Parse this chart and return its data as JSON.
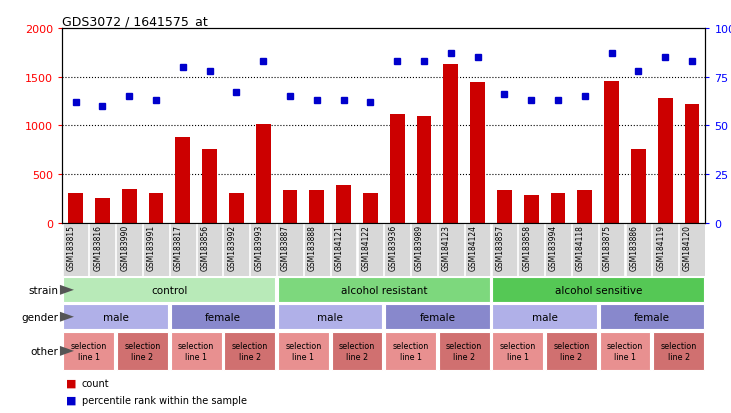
{
  "title": "GDS3072 / 1641575_at",
  "samples": [
    "GSM183815",
    "GSM183816",
    "GSM183990",
    "GSM183991",
    "GSM183817",
    "GSM183856",
    "GSM183992",
    "GSM183993",
    "GSM183887",
    "GSM183888",
    "GSM184121",
    "GSM184122",
    "GSM183936",
    "GSM183989",
    "GSM184123",
    "GSM184124",
    "GSM183857",
    "GSM183858",
    "GSM183994",
    "GSM184118",
    "GSM183875",
    "GSM183886",
    "GSM184119",
    "GSM184120"
  ],
  "counts": [
    300,
    250,
    350,
    300,
    880,
    760,
    300,
    1010,
    330,
    330,
    390,
    300,
    1120,
    1100,
    1630,
    1440,
    330,
    280,
    300,
    330,
    1460,
    760,
    1280,
    1220
  ],
  "percentiles": [
    62,
    60,
    65,
    63,
    80,
    78,
    67,
    83,
    65,
    63,
    63,
    62,
    83,
    83,
    87,
    85,
    66,
    63,
    63,
    65,
    87,
    78,
    85,
    83
  ],
  "ylim_left": [
    0,
    2000
  ],
  "ylim_right": [
    0,
    100
  ],
  "yticks_left": [
    0,
    500,
    1000,
    1500,
    2000
  ],
  "yticks_right": [
    0,
    25,
    50,
    75,
    100
  ],
  "strain_groups": [
    {
      "label": "control",
      "start": 0,
      "end": 8,
      "color": "#b8eab8"
    },
    {
      "label": "alcohol resistant",
      "start": 8,
      "end": 16,
      "color": "#7dd87d"
    },
    {
      "label": "alcohol sensitive",
      "start": 16,
      "end": 24,
      "color": "#55c855"
    }
  ],
  "gender_groups": [
    {
      "label": "male",
      "start": 0,
      "end": 4,
      "color": "#b0b0e8"
    },
    {
      "label": "female",
      "start": 4,
      "end": 8,
      "color": "#8888cc"
    },
    {
      "label": "male",
      "start": 8,
      "end": 12,
      "color": "#b0b0e8"
    },
    {
      "label": "female",
      "start": 12,
      "end": 16,
      "color": "#8888cc"
    },
    {
      "label": "male",
      "start": 16,
      "end": 20,
      "color": "#b0b0e8"
    },
    {
      "label": "female",
      "start": 20,
      "end": 24,
      "color": "#8888cc"
    }
  ],
  "other_groups": [
    {
      "label": "selection\nline 1",
      "start": 0,
      "end": 2,
      "color": "#e89090"
    },
    {
      "label": "selection\nline 2",
      "start": 2,
      "end": 4,
      "color": "#d07070"
    },
    {
      "label": "selection\nline 1",
      "start": 4,
      "end": 6,
      "color": "#e89090"
    },
    {
      "label": "selection\nline 2",
      "start": 6,
      "end": 8,
      "color": "#d07070"
    },
    {
      "label": "selection\nline 1",
      "start": 8,
      "end": 10,
      "color": "#e89090"
    },
    {
      "label": "selection\nline 2",
      "start": 10,
      "end": 12,
      "color": "#d07070"
    },
    {
      "label": "selection\nline 1",
      "start": 12,
      "end": 14,
      "color": "#e89090"
    },
    {
      "label": "selection\nline 2",
      "start": 14,
      "end": 16,
      "color": "#d07070"
    },
    {
      "label": "selection\nline 1",
      "start": 16,
      "end": 18,
      "color": "#e89090"
    },
    {
      "label": "selection\nline 2",
      "start": 18,
      "end": 20,
      "color": "#d07070"
    },
    {
      "label": "selection\nline 1",
      "start": 20,
      "end": 22,
      "color": "#e89090"
    },
    {
      "label": "selection\nline 2",
      "start": 22,
      "end": 24,
      "color": "#d07070"
    }
  ],
  "bar_color": "#cc0000",
  "dot_color": "#0000cc",
  "plot_bg": "#ffffff",
  "label_bg": "#d8d8d8",
  "legend_count_color": "#cc0000",
  "legend_pct_color": "#0000cc",
  "row_labels": [
    "strain",
    "gender",
    "other"
  ]
}
